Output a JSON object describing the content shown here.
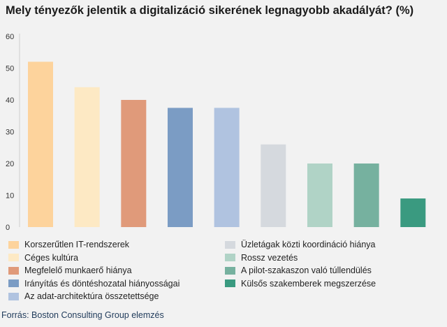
{
  "title": "Mely tényezők jelentik a digitalizáció sikerének legnagyobb akadályát? (%)",
  "source": "Forrás: Boston Consulting Group elemzés",
  "chart_data": {
    "type": "bar",
    "title": "Mely tényezők jelentik a digitalizáció sikerének legnagyobb akadályát? (%)",
    "categories": [
      "Korszerűtlen IT-rendszerek",
      "Céges kultúra",
      "Megfelelő munkaerő hiánya",
      "Irányítás és döntéshozatal hiányosságai",
      "Az adat-architektúra összetettsége",
      "Üzletágak közti koordináció hiánya",
      "Rossz vezetés",
      "A pilot-szakaszon való túllendülés",
      "Külsős szakemberek megszerzése"
    ],
    "values": [
      52,
      44,
      40,
      37.5,
      37.5,
      26,
      20,
      20,
      9
    ],
    "colors": [
      "#fdd39c",
      "#fde9c4",
      "#e09a7a",
      "#7b9cc4",
      "#b0c3e0",
      "#d5d9de",
      "#b0d3c6",
      "#76b19f",
      "#3a9a80"
    ],
    "ylim": [
      0,
      60
    ],
    "yticks": [
      0,
      10,
      20,
      30,
      40,
      50,
      60
    ],
    "grid": false,
    "xlabel": "",
    "ylabel": "",
    "legend_position": "bottom"
  }
}
